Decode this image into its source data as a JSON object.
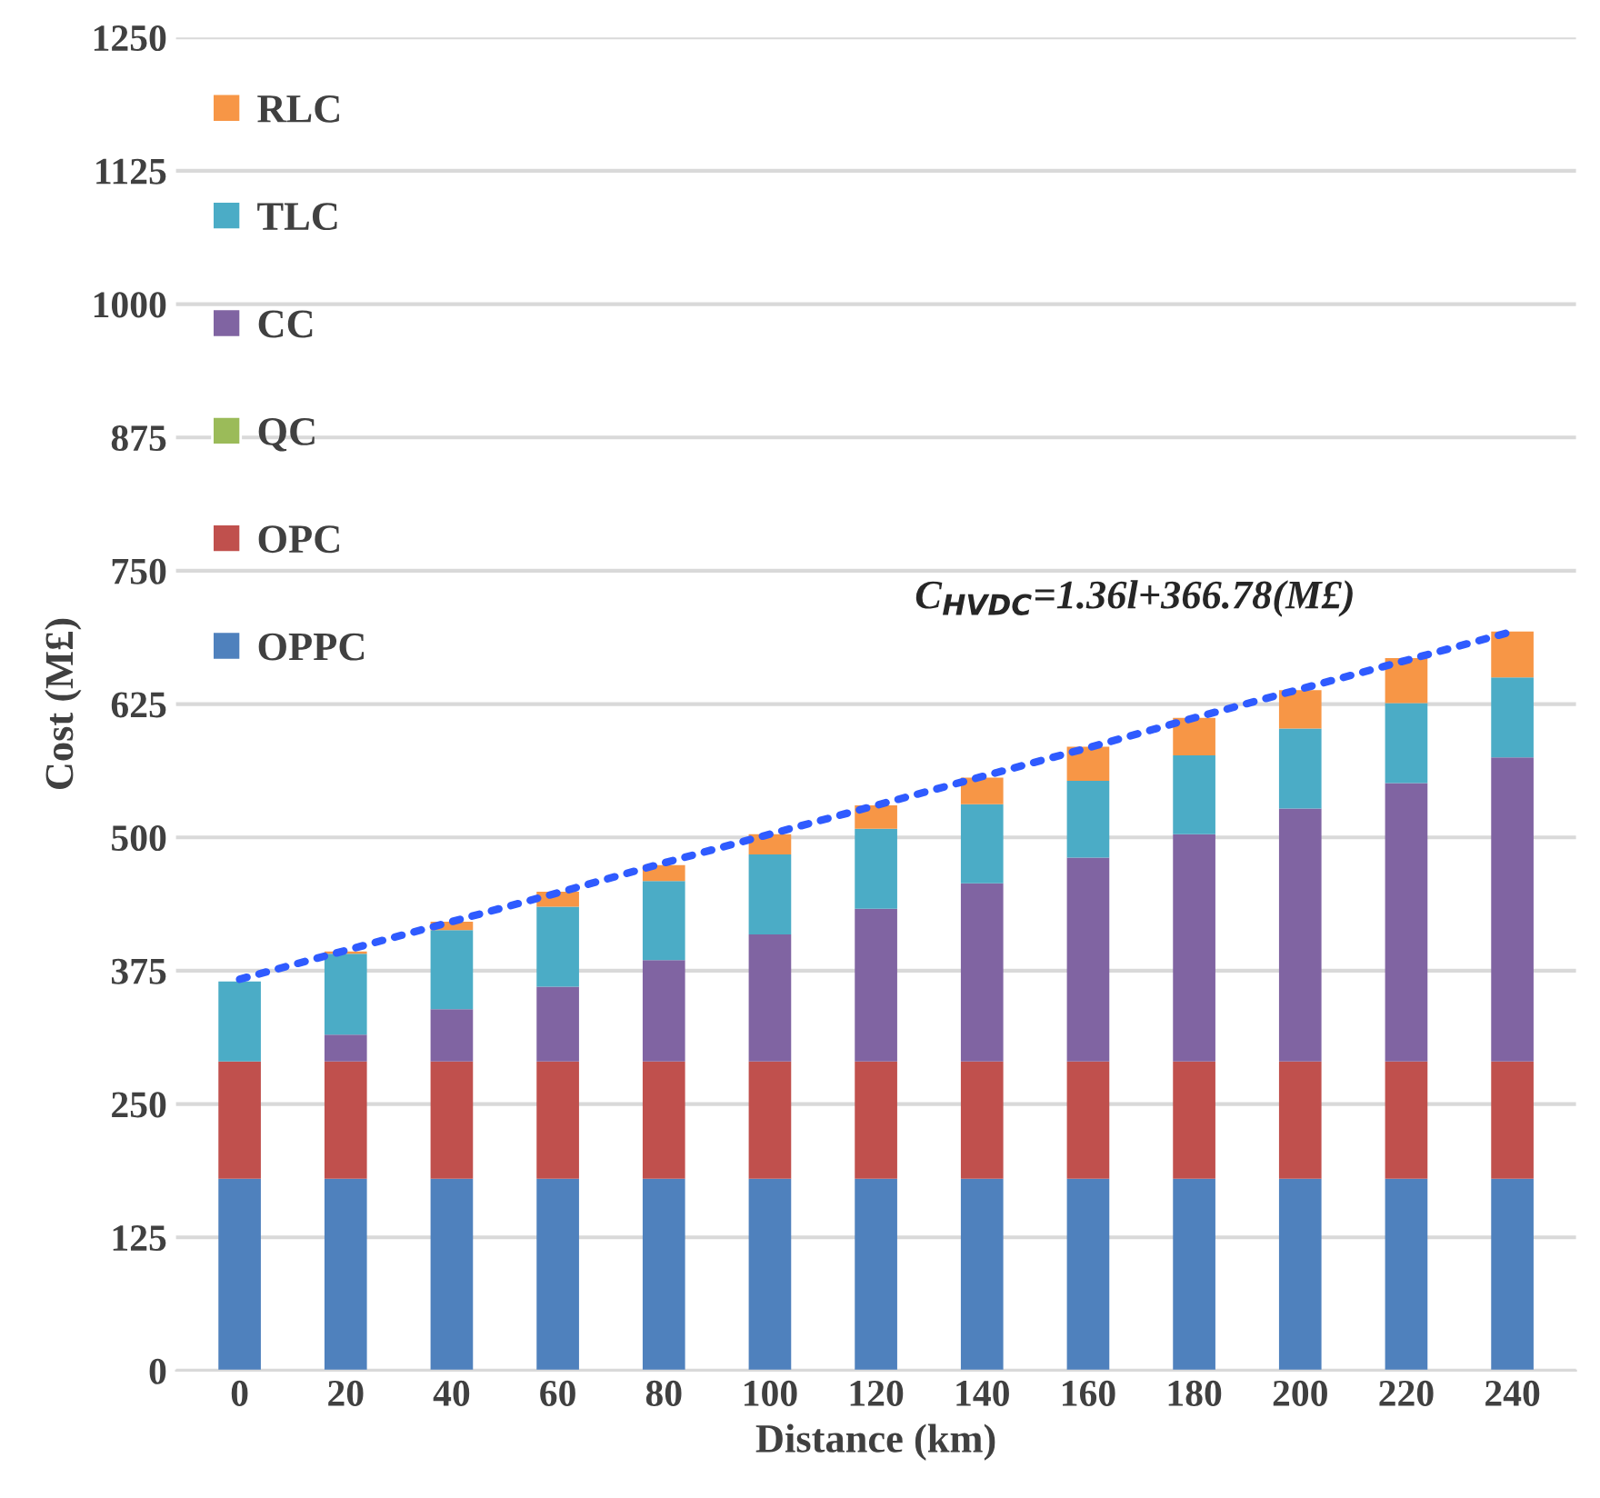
{
  "chart_data": {
    "type": "bar",
    "stacked": true,
    "xlabel": "Distance (km)",
    "ylabel": "Cost (M£)",
    "categories": [
      "0",
      "20",
      "40",
      "60",
      "80",
      "100",
      "120",
      "140",
      "160",
      "180",
      "200",
      "220",
      "240"
    ],
    "series": [
      {
        "name": "OPPC",
        "color": "#4f81bd",
        "values": [
          180,
          180,
          180,
          180,
          180,
          180,
          180,
          180,
          180,
          180,
          180,
          180,
          180
        ]
      },
      {
        "name": "OPC",
        "color": "#c0504d",
        "values": [
          110,
          110,
          110,
          110,
          110,
          110,
          110,
          110,
          110,
          110,
          110,
          110,
          110
        ]
      },
      {
        "name": "QC",
        "color": "#9bbb59",
        "values": [
          0,
          0,
          0,
          0,
          0,
          0,
          0,
          0,
          0,
          0,
          0,
          0,
          0
        ]
      },
      {
        "name": "CC",
        "color": "#8064a2",
        "values": [
          0,
          25,
          49,
          70,
          95,
          119,
          143,
          167,
          191,
          213,
          237,
          261,
          285
        ]
      },
      {
        "name": "TLC",
        "color": "#4bacc6",
        "values": [
          75,
          76,
          74,
          75,
          74,
          75,
          75,
          74,
          72,
          74,
          75,
          75,
          75
        ]
      },
      {
        "name": "RLC",
        "color": "#f79646",
        "values": [
          0,
          2,
          8,
          14,
          15,
          19,
          22,
          25,
          32,
          35,
          36,
          42,
          43
        ]
      },
      {
        "type": "line",
        "line_style": "dotted",
        "color": "#2f5bff",
        "values": [
          367,
          394,
          421,
          448,
          476,
          503,
          530,
          557,
          584,
          612,
          639,
          666,
          693
        ]
      }
    ],
    "ylim": [
      0,
      1250
    ],
    "yticks": [
      0,
      125,
      250,
      375,
      500,
      625,
      750,
      875,
      1000,
      1125,
      1250
    ],
    "grid": "y",
    "legend": "top left",
    "annotations": [
      "C$_{HVDC}$=1.36l+366.78(M£)"
    ]
  }
}
